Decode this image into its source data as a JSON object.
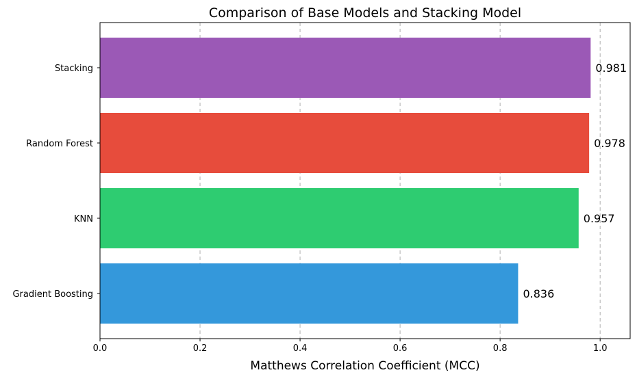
{
  "chart_data": {
    "type": "bar",
    "orientation": "horizontal",
    "title": "Comparison of Base Models and Stacking Model",
    "xlabel": "Matthews Correlation Coefficient (MCC)",
    "ylabel": "",
    "xlim": [
      0,
      1.06
    ],
    "x_ticks": [
      "0.0",
      "0.2",
      "0.4",
      "0.6",
      "0.8",
      "1.0"
    ],
    "grid": "x-axis, dashed",
    "categories": [
      "Gradient Boosting",
      "KNN",
      "Random Forest",
      "Stacking"
    ],
    "values": [
      0.836,
      0.957,
      0.978,
      0.981
    ],
    "data_labels": [
      "0.836",
      "0.957",
      "0.978",
      "0.981"
    ],
    "colors": [
      "#3498db",
      "#2ecc71",
      "#e74c3c",
      "#9b59b6"
    ]
  }
}
